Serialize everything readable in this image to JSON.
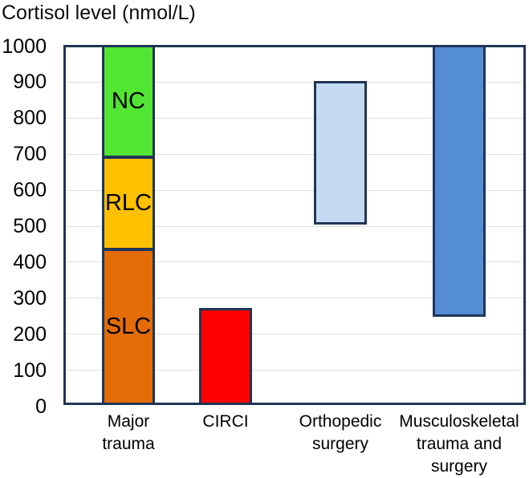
{
  "title": "Cortisol level (nmol/L)",
  "colors": {
    "axis_border": "#1F3556",
    "gridline": "#DEDEDE",
    "text": "#000000",
    "nc_green": "#53E533",
    "rlc_amber": "#FFC000",
    "slc_orange": "#E36C09",
    "circi_red": "#FF0000",
    "orthopedic_light_blue": "#C5D9F1",
    "musculoskeletal_blue": "#548DD4"
  },
  "chart_data": {
    "type": "bar",
    "subtype": "vertical-floating-range-bars",
    "title": "Cortisol level (nmol/L)",
    "ylabel": "Cortisol level (nmol/L)",
    "ylim": [
      0,
      1000
    ],
    "ytick_step": 100,
    "yticks": [
      0,
      100,
      200,
      300,
      400,
      500,
      600,
      700,
      800,
      900,
      1000
    ],
    "grid": true,
    "gridline_values": [
      100,
      200,
      300,
      400,
      500,
      600,
      700,
      800,
      900
    ],
    "legend": "none",
    "categories": [
      "Major trauma",
      "CIRCI",
      "Orthopedic surgery",
      "Musculoskeletal trauma and surgery"
    ],
    "bars": [
      {
        "category": "Major trauma",
        "label_lines": [
          "Major",
          "trauma"
        ],
        "segments": [
          {
            "label": "SLC",
            "from": 0,
            "to": 435,
            "color": "#E36C09"
          },
          {
            "label": "RLC",
            "from": 435,
            "to": 690,
            "color": "#FFC000"
          },
          {
            "label": "NC",
            "from": 690,
            "to": 1000,
            "color": "#53E533"
          }
        ]
      },
      {
        "category": "CIRCI",
        "label_lines": [
          "CIRCI"
        ],
        "segments": [
          {
            "label": "",
            "from": 0,
            "to": 270,
            "color": "#FF0000"
          }
        ]
      },
      {
        "category": "Orthopedic surgery",
        "label_lines": [
          "Orthopedic",
          "surgery"
        ],
        "segments": [
          {
            "label": "",
            "from": 500,
            "to": 900,
            "color": "#C5D9F1"
          }
        ]
      },
      {
        "category": "Musculoskeletal trauma and surgery",
        "label_lines": [
          "Musculoskeletal",
          "trauma and",
          "surgery"
        ],
        "segments": [
          {
            "label": "",
            "from": 245,
            "to": 1000,
            "color": "#548DD4"
          }
        ]
      }
    ]
  }
}
